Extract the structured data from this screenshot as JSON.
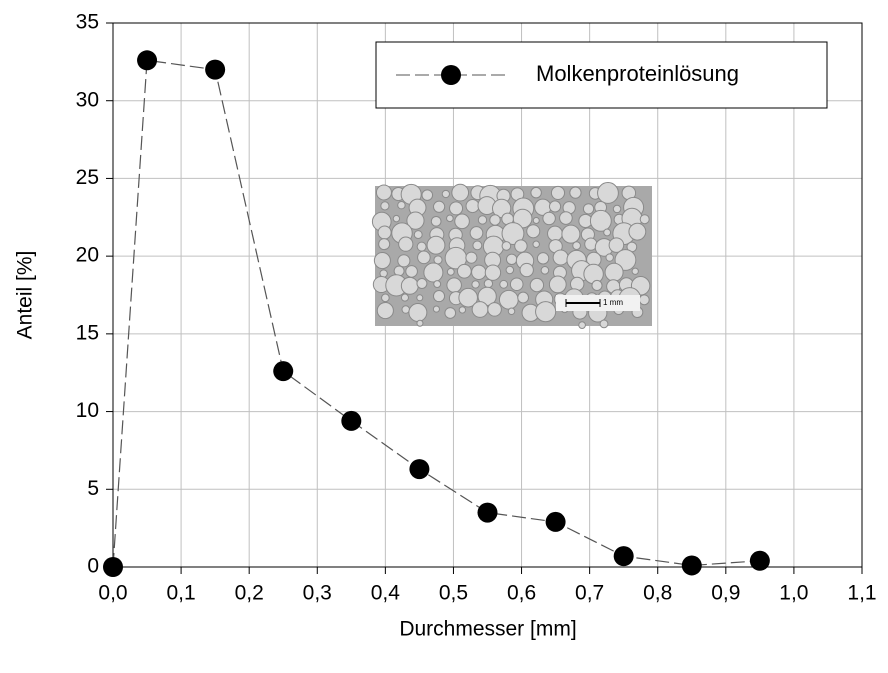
{
  "chart_data": {
    "type": "line",
    "x_label": "Durchmesser [mm]",
    "y_label": "Anteil [%]",
    "x": [
      0.0,
      0.05,
      0.15,
      0.25,
      0.35,
      0.45,
      0.55,
      0.65,
      0.75,
      0.85,
      0.95
    ],
    "series": [
      {
        "name": "Molkenproteinlösung",
        "color": "#000000",
        "values": [
          0,
          32.6,
          32.0,
          12.6,
          9.4,
          6.3,
          3.5,
          2.9,
          0.7,
          0.1,
          0.4
        ]
      }
    ],
    "xlim": [
      0,
      1.1
    ],
    "xticks": [
      {
        "value": 0,
        "label": "0,0"
      },
      {
        "value": 0.1,
        "label": "0,1"
      },
      {
        "value": 0.2,
        "label": "0,2"
      },
      {
        "value": 0.3,
        "label": "0,3"
      },
      {
        "value": 0.4,
        "label": "0,4"
      },
      {
        "value": 0.5,
        "label": "0,5"
      },
      {
        "value": 0.6,
        "label": "0,6"
      },
      {
        "value": 0.7,
        "label": "0,7"
      },
      {
        "value": 0.8,
        "label": "0,8"
      },
      {
        "value": 0.9,
        "label": "0,9"
      },
      {
        "value": 1.0,
        "label": "1,0"
      },
      {
        "value": 1.1,
        "label": "1,1"
      }
    ],
    "ylim": [
      0,
      35
    ],
    "yticks": [
      0,
      5,
      10,
      15,
      20,
      25,
      30,
      35
    ],
    "grid": true,
    "legend": "upper right",
    "inset_annotation": "1 mm"
  }
}
